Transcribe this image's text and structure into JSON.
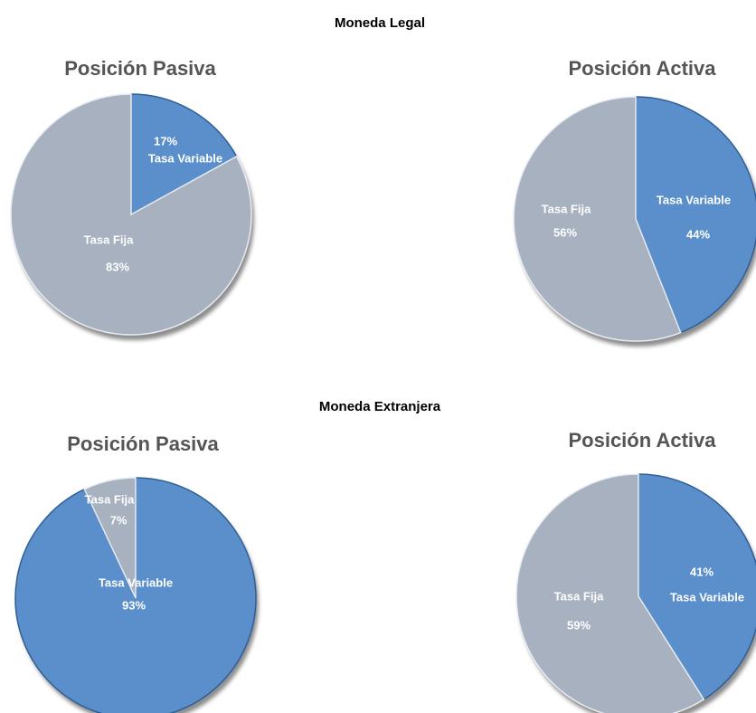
{
  "sections": [
    "Moneda Legal",
    "Moneda Extranjera"
  ],
  "chart_data": [
    {
      "type": "pie",
      "title": "Posición Pasiva",
      "categories": [
        "Tasa Variable",
        "Tasa Fija"
      ],
      "values": [
        17,
        83
      ],
      "value_labels": [
        "17%",
        "83%"
      ],
      "colors": [
        "#5b8fcb",
        "#a7b1c0"
      ]
    },
    {
      "type": "pie",
      "title": "Posición Activa",
      "categories": [
        "Tasa Variable",
        "Tasa Fija"
      ],
      "values": [
        44,
        56
      ],
      "value_labels": [
        "44%",
        "56%"
      ],
      "colors": [
        "#5b8fcb",
        "#a7b1c0"
      ]
    },
    {
      "type": "pie",
      "title": "Posición Pasiva",
      "categories": [
        "Tasa Variable",
        "Tasa Fija"
      ],
      "values": [
        93,
        7
      ],
      "value_labels": [
        "93%",
        "7%"
      ],
      "colors": [
        "#5b8fcb",
        "#a7b1c0"
      ]
    },
    {
      "type": "pie",
      "title": "Posición Activa",
      "categories": [
        "Tasa Variable",
        "Tasa Fija"
      ],
      "values": [
        41,
        59
      ],
      "value_labels": [
        "41%",
        "59%"
      ],
      "colors": [
        "#5b8fcb",
        "#a7b1c0"
      ]
    }
  ]
}
